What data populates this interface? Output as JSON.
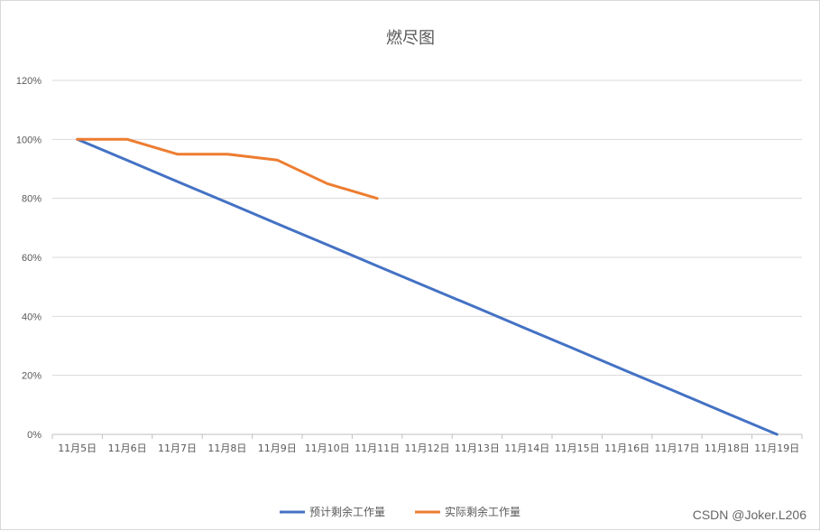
{
  "chart_data": {
    "type": "line",
    "title": "燃尽图",
    "categories": [
      "11月5日",
      "11月6日",
      "11月7日",
      "11月8日",
      "11月9日",
      "11月10日",
      "11月11日",
      "11月12日",
      "11月13日",
      "11月14日",
      "11月15日",
      "11月16日",
      "11月17日",
      "11月18日",
      "11月19日"
    ],
    "y_ticks": [
      "0%",
      "20%",
      "40%",
      "60%",
      "80%",
      "100%",
      "120%"
    ],
    "ylim": [
      0,
      120
    ],
    "grid": true,
    "legend_position": "bottom",
    "series": [
      {
        "name": "预计剩余工作量",
        "color": "#4472c4",
        "values": [
          100,
          92.9,
          85.7,
          78.6,
          71.4,
          64.3,
          57.1,
          50,
          42.9,
          35.7,
          28.6,
          21.4,
          14.3,
          7.1,
          0
        ]
      },
      {
        "name": "实际剩余工作量",
        "color": "#ed7d31",
        "values": [
          100,
          100,
          95,
          95,
          93,
          85,
          80,
          null,
          null,
          null,
          null,
          null,
          null,
          null,
          null
        ]
      }
    ]
  },
  "watermark": "CSDN @Joker.L206"
}
